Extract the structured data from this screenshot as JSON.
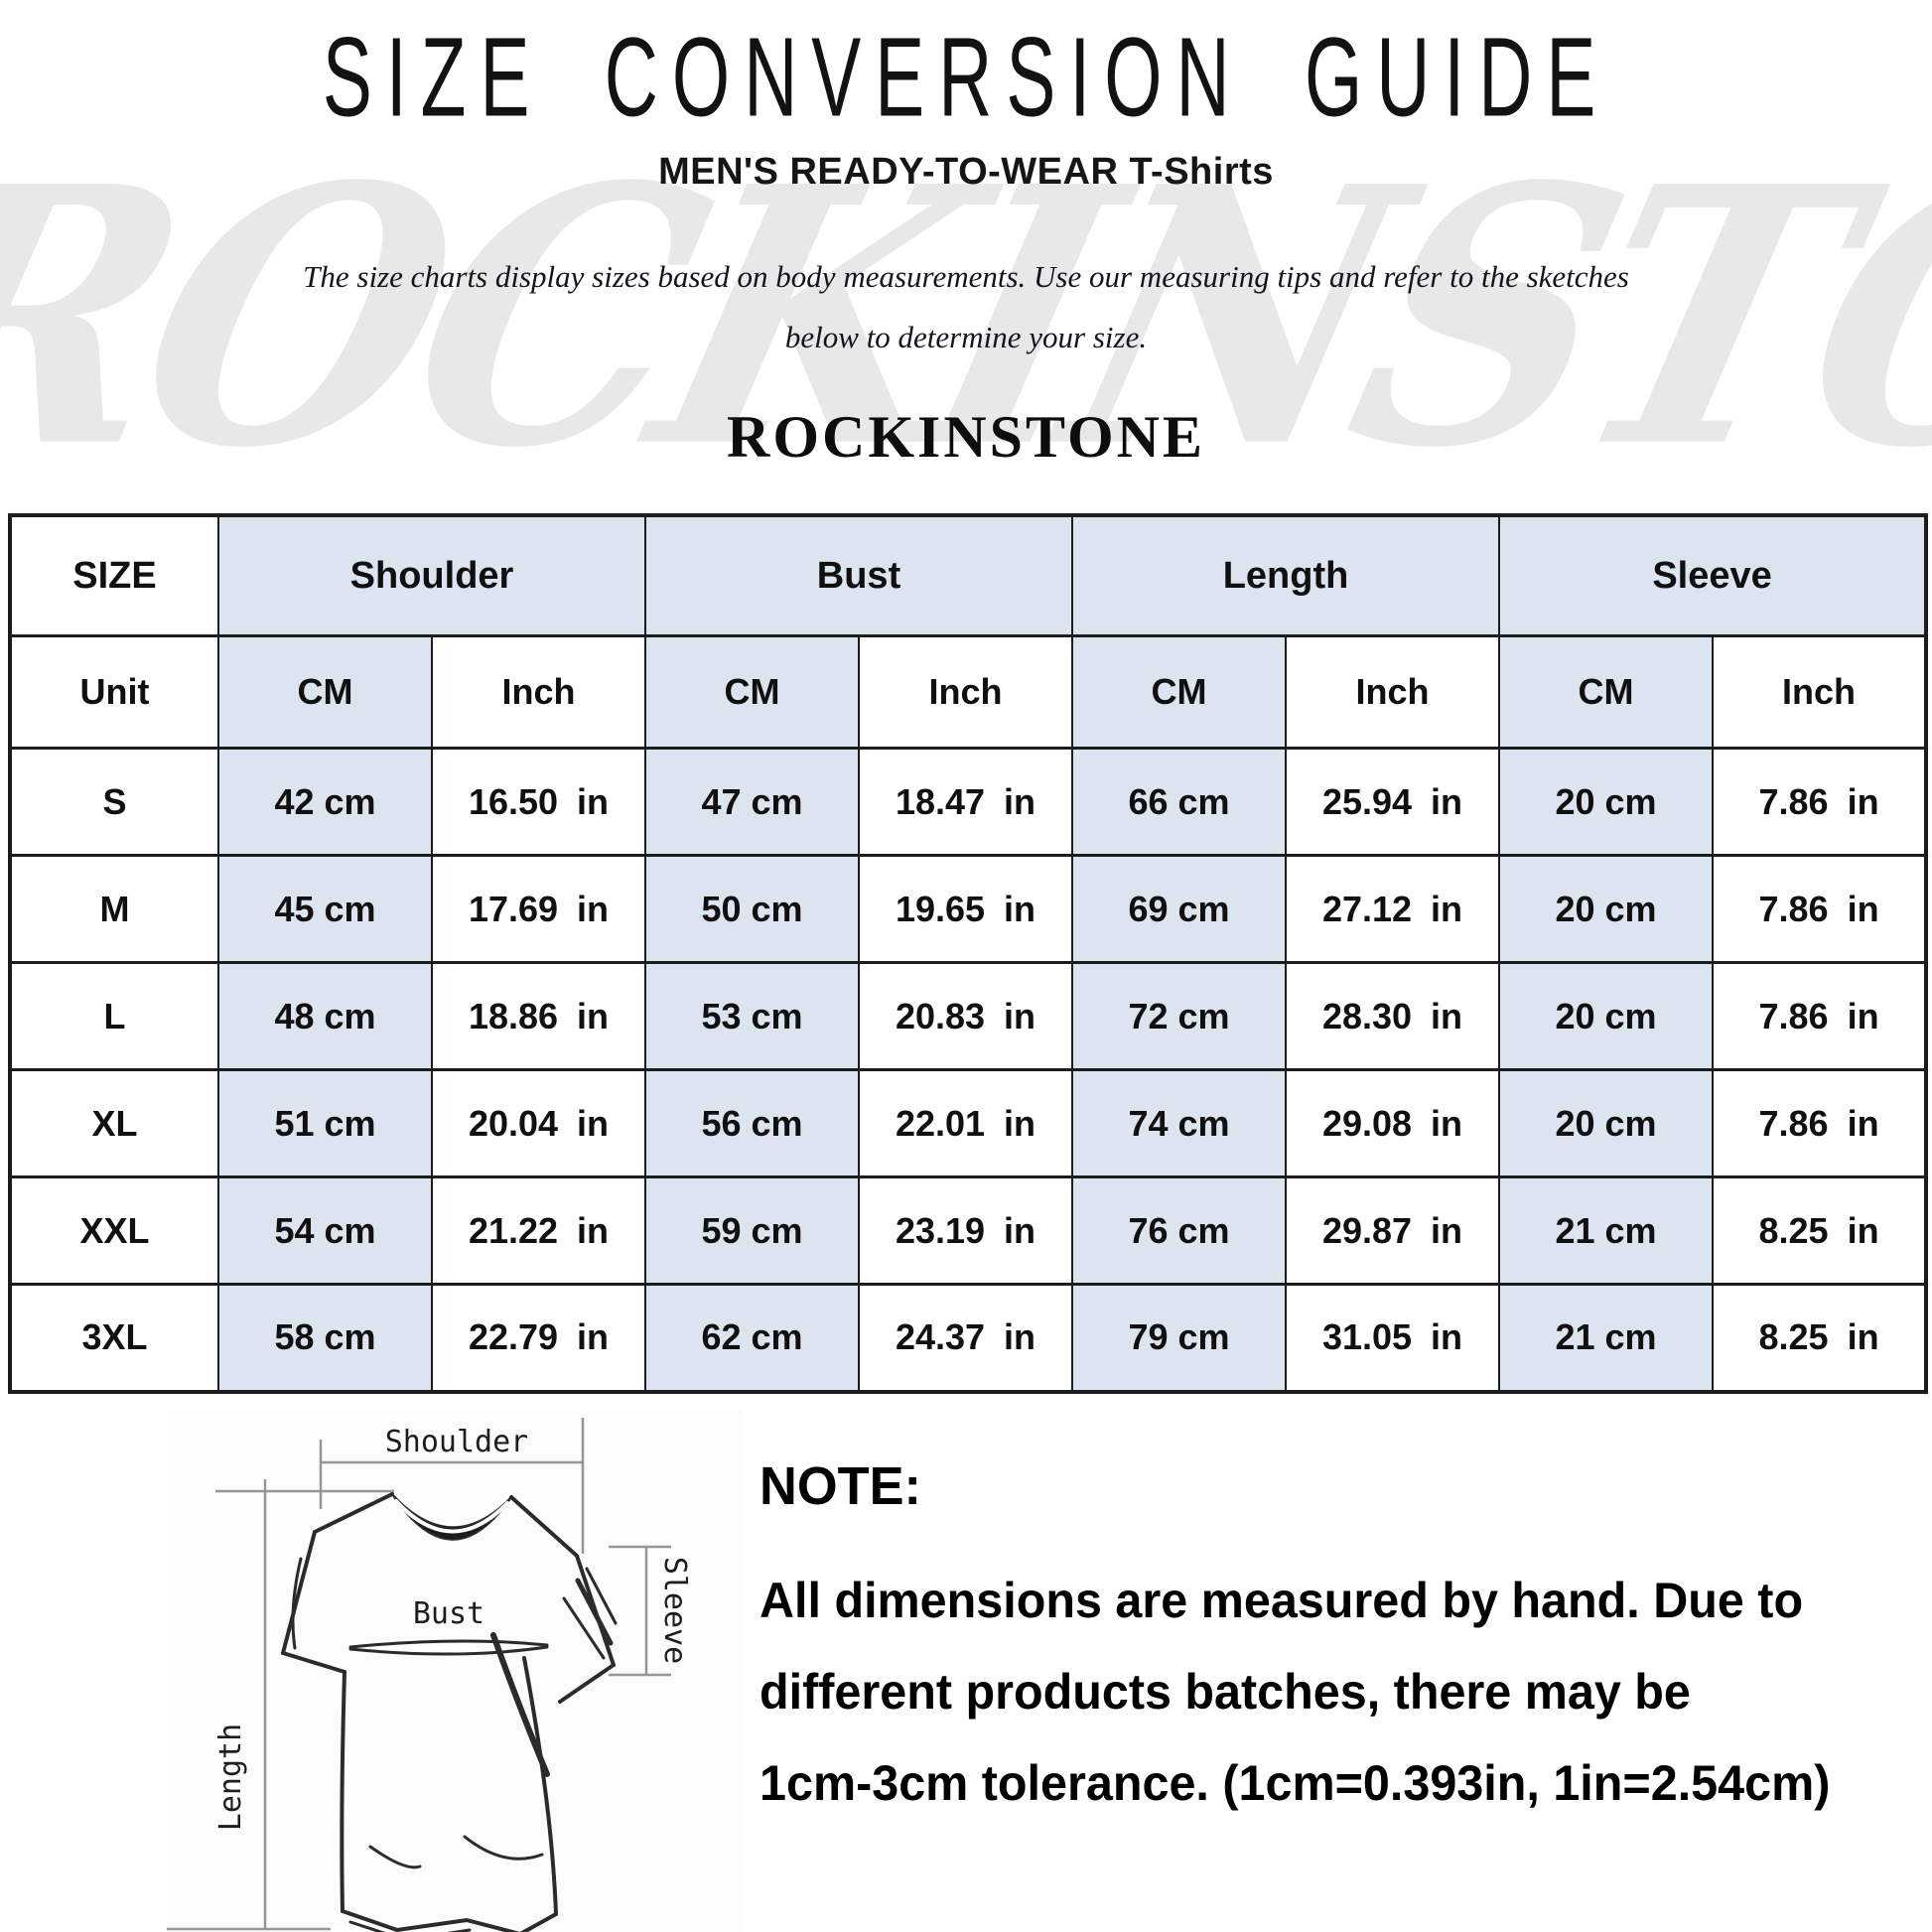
{
  "header": {
    "title": "SIZE CONVERSION GUIDE",
    "category": "MEN'S READY-TO-WEAR T-Shirts",
    "description_line1": "The size charts display sizes based on body measurements.  Use our measuring tips and refer to the sketches",
    "description_line2": "below to determine your size.",
    "brand": "ROCKINSTONE",
    "watermark": "ROCKINSTONE"
  },
  "size_table": {
    "columns": [
      "SIZE",
      "Shoulder",
      "Bust",
      "Length",
      "Sleeve"
    ],
    "unit_label": "Unit",
    "units": [
      "CM",
      "Inch",
      "CM",
      "Inch",
      "CM",
      "Inch",
      "CM",
      "Inch"
    ],
    "rows": [
      {
        "size": "S",
        "values": [
          "42 cm",
          "16.50 in",
          "47 cm",
          "18.47 in",
          "66 cm",
          "25.94 in",
          "20 cm",
          "7.86 in"
        ]
      },
      {
        "size": "M",
        "values": [
          "45 cm",
          "17.69 in",
          "50 cm",
          "19.65 in",
          "69 cm",
          "27.12 in",
          "20 cm",
          "7.86 in"
        ]
      },
      {
        "size": "L",
        "values": [
          "48 cm",
          "18.86 in",
          "53 cm",
          "20.83 in",
          "72 cm",
          "28.30 in",
          "20 cm",
          "7.86 in"
        ]
      },
      {
        "size": "XL",
        "values": [
          "51 cm",
          "20.04 in",
          "56 cm",
          "22.01 in",
          "74 cm",
          "29.08 in",
          "20 cm",
          "7.86 in"
        ]
      },
      {
        "size": "XXL",
        "values": [
          "54 cm",
          "21.22 in",
          "59 cm",
          "23.19 in",
          "76 cm",
          "29.87 in",
          "21 cm",
          "8.25 in"
        ]
      },
      {
        "size": "3XL",
        "values": [
          "58 cm",
          "22.79 in",
          "62 cm",
          "24.37 in",
          "79 cm",
          "31.05 in",
          "21 cm",
          "8.25 in"
        ]
      }
    ]
  },
  "diagram": {
    "shoulder": "Shoulder",
    "bust": "Bust",
    "length": "Length",
    "sleeve": "Sleeve"
  },
  "note": {
    "heading": "NOTE:",
    "lines": [
      "All dimensions are measured by hand. Due to",
      "different products batches, there may be",
      "1cm-3cm tolerance. (1cm=0.393in, 1in=2.54cm)"
    ]
  },
  "colors": {
    "cell_blue": "#dce4ef",
    "table_border": "#1c1c1c",
    "watermark_gray": "#e8e8e8"
  }
}
